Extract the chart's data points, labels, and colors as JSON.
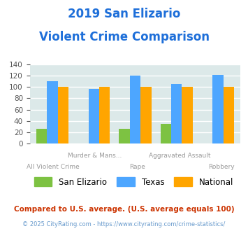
{
  "title_line1": "2019 San Elizario",
  "title_line2": "Violent Crime Comparison",
  "title_color": "#1e6fd9",
  "cat_top": [
    "",
    "Murder & Mans...",
    "",
    "Aggravated Assault",
    ""
  ],
  "cat_bottom": [
    "All Violent Crime",
    "",
    "Rape",
    "",
    "Robbery"
  ],
  "san_elizario": [
    26,
    0,
    26,
    35,
    0
  ],
  "texas": [
    110,
    97,
    120,
    105,
    122
  ],
  "national": [
    100,
    100,
    100,
    100,
    100
  ],
  "color_san_elizario": "#7dc242",
  "color_texas": "#4da6ff",
  "color_national": "#ffa500",
  "ylim": [
    0,
    140
  ],
  "yticks": [
    0,
    20,
    40,
    60,
    80,
    100,
    120,
    140
  ],
  "background_color": "#dce9e9",
  "grid_color": "#ffffff",
  "footnote1": "Compared to U.S. average. (U.S. average equals 100)",
  "footnote2": "© 2025 CityRating.com - https://www.cityrating.com/crime-statistics/",
  "footnote1_color": "#cc3300",
  "footnote2_color": "#6699cc",
  "legend_labels": [
    "San Elizario",
    "Texas",
    "National"
  ]
}
